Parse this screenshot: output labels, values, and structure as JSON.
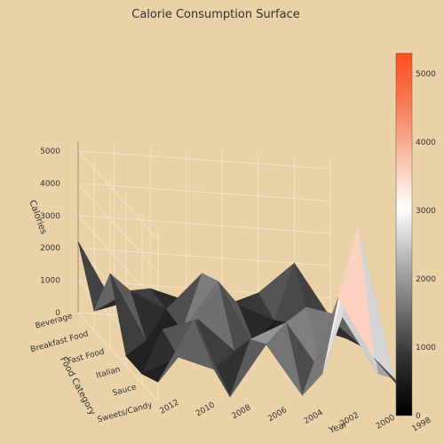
{
  "chart_data": {
    "type": "surface",
    "title": "Calorie Consumption Surface",
    "x_axis": {
      "label": "Year",
      "ticks": [
        "1998",
        "2000",
        "2002",
        "2004",
        "2006",
        "2008",
        "2010",
        "2012"
      ]
    },
    "y_axis": {
      "label": "Food Category",
      "categories": [
        "Beverage",
        "Breakfast Food",
        "Fast Food",
        "Italian",
        "Sauce",
        "Sweets/Candy"
      ]
    },
    "z_axis": {
      "label": "Calories",
      "ticks": [
        "0",
        "1000",
        "2000",
        "3000",
        "4000",
        "5000"
      ],
      "range": [
        0,
        5300
      ]
    },
    "colorbar": {
      "ticks": [
        "0",
        "1000",
        "2000",
        "3000",
        "4000",
        "5000"
      ],
      "range": [
        0,
        5300
      ],
      "colorscale": [
        "#000000",
        "#2a2a2a",
        "#6e6e6e",
        "#b4b4b4",
        "#ffffff",
        "#fbbfa6",
        "#f77b53",
        "#ff4e1f"
      ]
    },
    "years": [
      1998,
      2000,
      2002,
      2004,
      2006,
      2008,
      2010,
      2012
    ],
    "z_values": [
      [
        400,
        2000,
        1000,
        500,
        600,
        900,
        300,
        2200
      ],
      [
        300,
        600,
        700,
        1100,
        2000,
        800,
        1300,
        600
      ],
      [
        600,
        1500,
        500,
        400,
        2300,
        700,
        300,
        2300
      ],
      [
        300,
        2000,
        2200,
        1000,
        700,
        1600,
        1200,
        300
      ],
      [
        700,
        5300,
        700,
        2200,
        1600,
        600,
        900,
        300
      ],
      [
        600,
        1800,
        3600,
        500,
        2000,
        300,
        2600,
        600
      ]
    ]
  }
}
